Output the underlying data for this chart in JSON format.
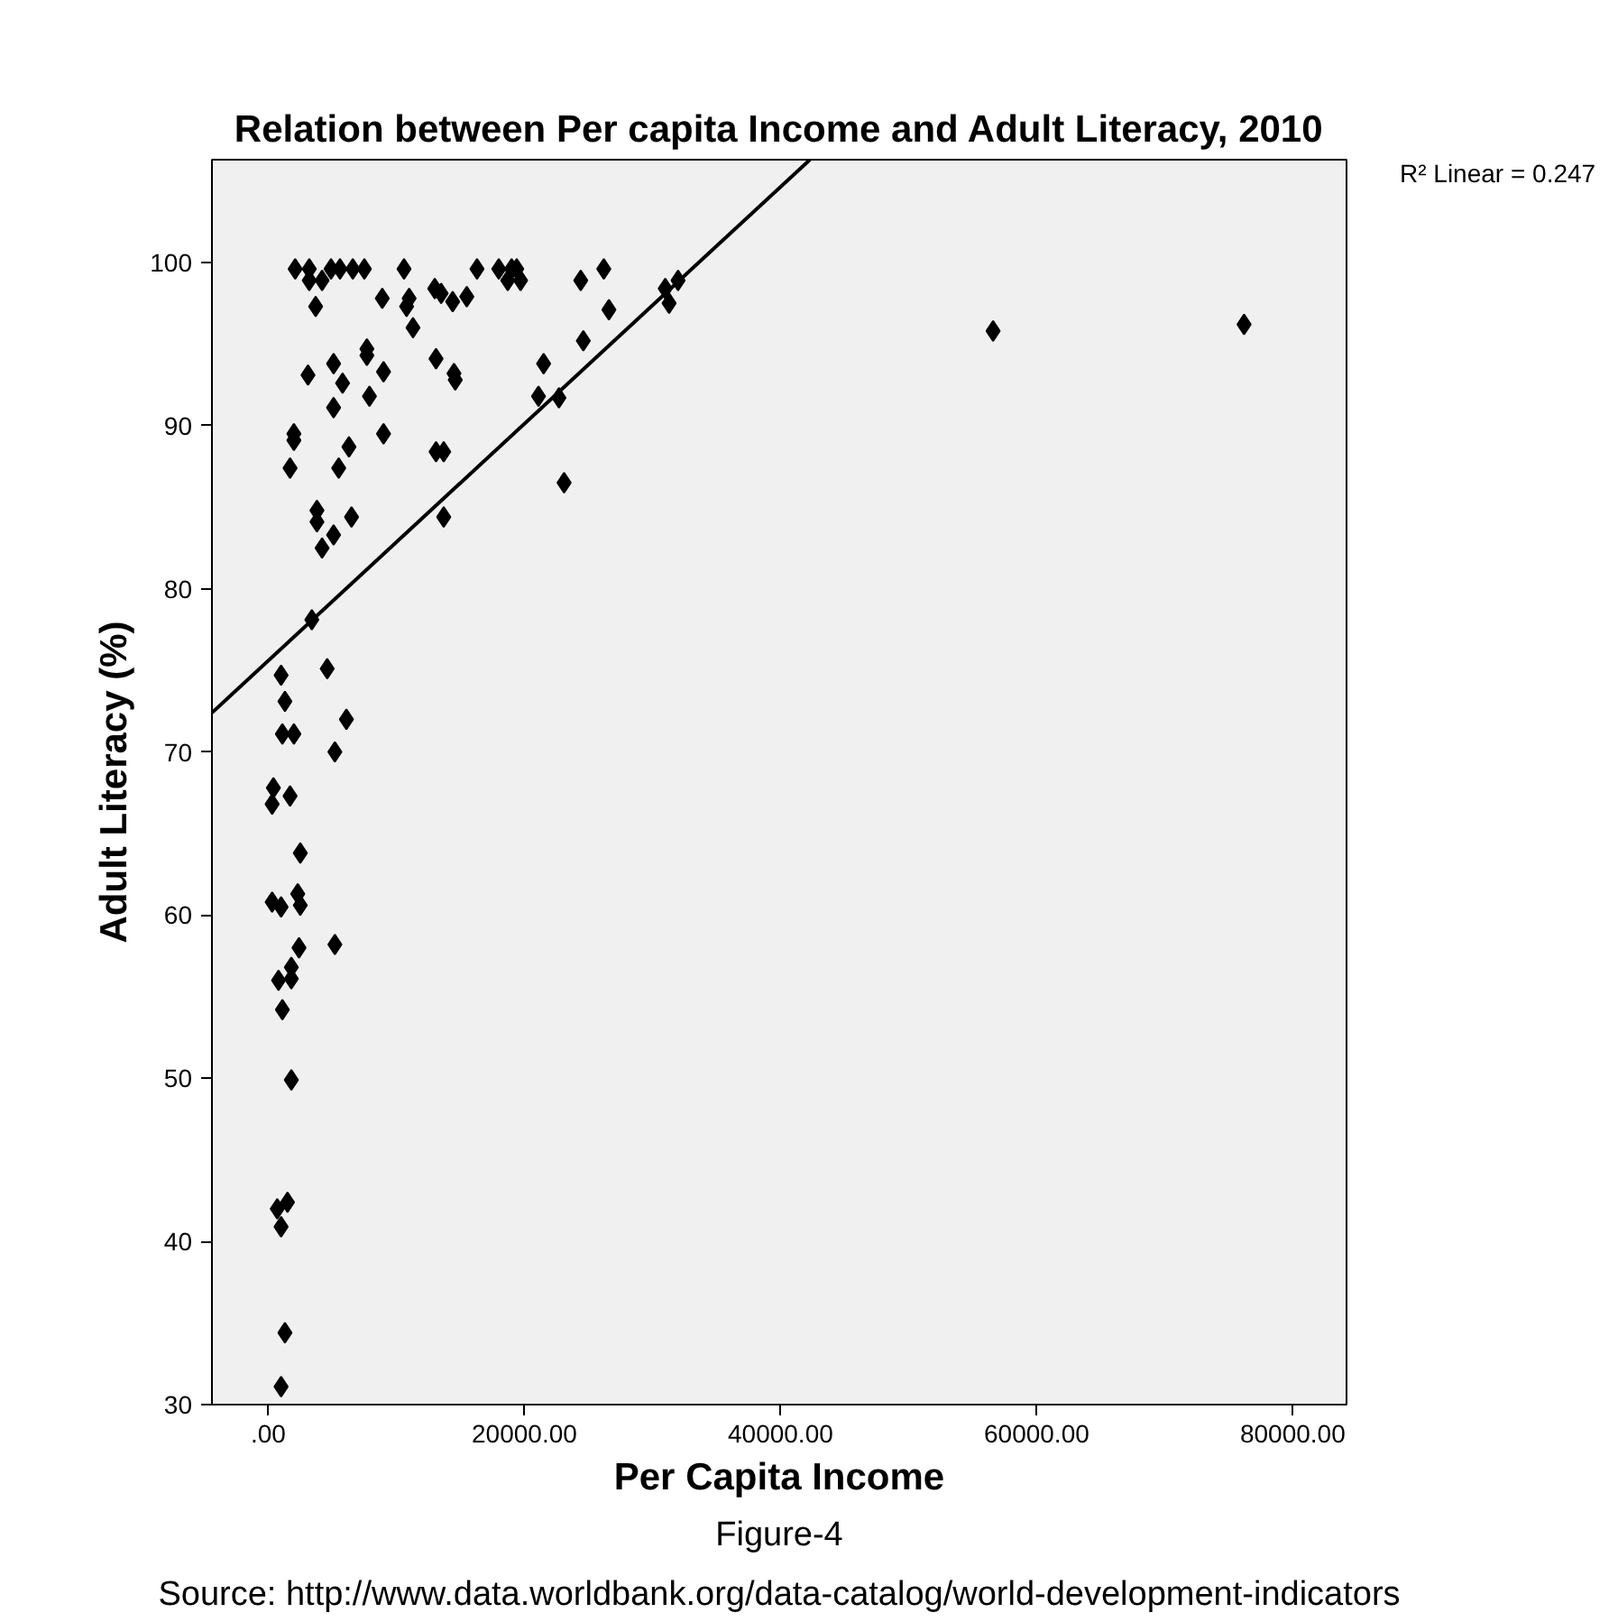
{
  "chart_data": {
    "type": "scatter",
    "title": "Relation between Per capita Income and Adult Literacy, 2010",
    "xlabel": "Per Capita Income",
    "ylabel": "Adult Literacy (%)",
    "xlim": [
      -4400,
      84200
    ],
    "ylim": [
      30,
      106.3
    ],
    "xticks": [
      {
        "value": 0,
        "label": ".00"
      },
      {
        "value": 20000,
        "label": "20000.00"
      },
      {
        "value": 40000,
        "label": "40000.00"
      },
      {
        "value": 60000,
        "label": "60000.00"
      },
      {
        "value": 80000,
        "label": "80000.00"
      }
    ],
    "yticks": [
      30,
      40,
      50,
      60,
      70,
      80,
      90,
      100
    ],
    "grid": false,
    "annotations": [
      "R² Linear = 0.247",
      "Figure-4",
      "Source: http://www.data.worldbank.org/data-catalog/world-development-indicators"
    ],
    "series": [
      {
        "marker": "diamond",
        "color": "#000000",
        "x": [
          2100,
          3200,
          4900,
          5600,
          6600,
          7500,
          10600,
          16300,
          18000,
          19000,
          19400,
          26200,
          3200,
          4200,
          18700,
          19700,
          24400,
          3700,
          8900,
          11000,
          10800,
          13000,
          13500,
          14400,
          15500,
          11300,
          26600,
          31000,
          32000,
          31300,
          24600,
          3100,
          5100,
          7700,
          7700,
          9000,
          5800,
          13100,
          14500,
          14600,
          21500,
          21100,
          22700,
          5100,
          7900,
          2000,
          2000,
          9000,
          6300,
          1700,
          5500,
          13100,
          13700,
          23100,
          3800,
          3800,
          6500,
          5100,
          4200,
          13700,
          3400,
          56600,
          76200,
          1000,
          4600,
          1300,
          6100,
          1100,
          2000,
          5200,
          400,
          300,
          1700,
          2500,
          300,
          1000,
          2300,
          2500,
          2400,
          5200,
          800,
          1800,
          1800,
          1100,
          1800,
          1500,
          700,
          1000,
          1300,
          1000
        ],
        "values": [
          99.6,
          99.6,
          99.6,
          99.6,
          99.6,
          99.6,
          99.6,
          99.6,
          99.6,
          99.6,
          99.6,
          99.6,
          98.9,
          98.9,
          98.9,
          98.9,
          98.9,
          97.3,
          97.8,
          97.8,
          97.3,
          98.4,
          98.1,
          97.6,
          97.9,
          96.0,
          97.1,
          98.4,
          98.9,
          97.5,
          95.2,
          93.1,
          93.8,
          94.7,
          94.3,
          93.3,
          92.6,
          94.1,
          93.2,
          92.8,
          93.8,
          91.8,
          91.7,
          91.1,
          91.8,
          89.5,
          89.1,
          89.5,
          88.7,
          87.4,
          87.4,
          88.4,
          88.4,
          86.5,
          84.8,
          84.1,
          84.4,
          83.3,
          82.5,
          84.4,
          78.1,
          95.8,
          96.2,
          74.7,
          75.1,
          73.1,
          72.0,
          71.1,
          71.1,
          70.0,
          67.8,
          66.8,
          67.3,
          63.8,
          60.8,
          60.5,
          61.3,
          60.6,
          58.0,
          58.2,
          56.0,
          56.8,
          56.1,
          54.2,
          49.9,
          42.4,
          42.0,
          40.9,
          34.4,
          31.1
        ]
      },
      {
        "type": "line",
        "marker": "none",
        "color": "#000000",
        "x": [
          -4400,
          42300
        ],
        "values": [
          72.4,
          106.3
        ]
      }
    ]
  }
}
